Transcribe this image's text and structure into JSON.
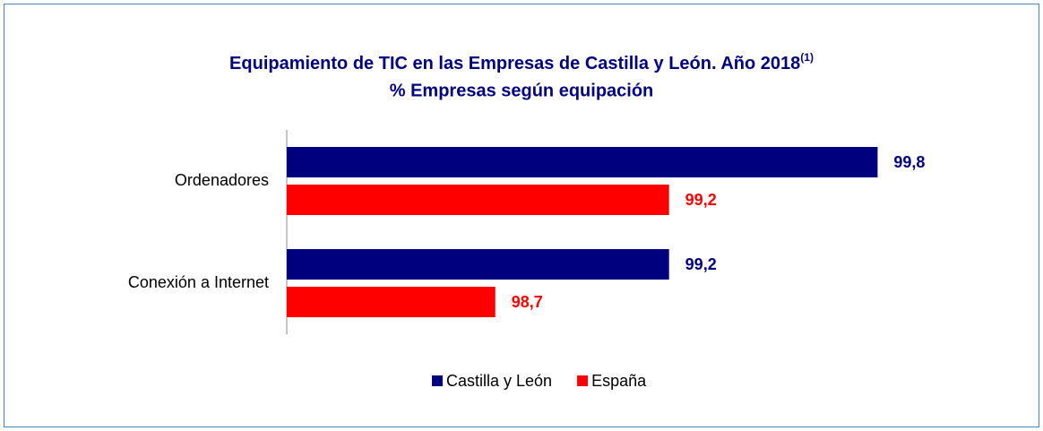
{
  "chart_data": {
    "type": "bar",
    "orientation": "horizontal",
    "title": "Equipamiento de TIC en las Empresas de Castilla y León. Año 2018",
    "title_superscript": "(1)",
    "subtitle": "% Empresas según equipación",
    "categories": [
      "Ordenadores",
      "Conexión a Internet"
    ],
    "series": [
      {
        "name": "Castilla y León",
        "color": "#00007f",
        "values": [
          99.8,
          99.2
        ],
        "value_labels": [
          "99,8",
          "99,2"
        ]
      },
      {
        "name": "España",
        "color": "#ff0000",
        "values": [
          99.2,
          98.7
        ],
        "value_labels": [
          "99,2",
          "98,7"
        ]
      }
    ],
    "xlim": [
      98.1,
      100
    ],
    "legend": "bottom"
  }
}
